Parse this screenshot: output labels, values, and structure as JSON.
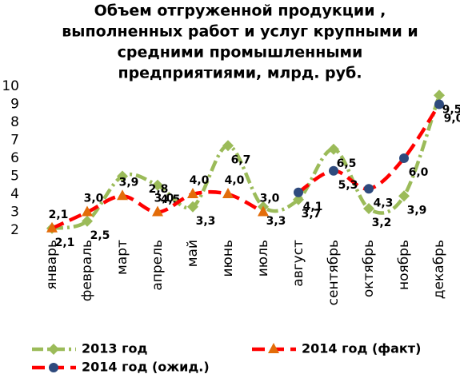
{
  "chart_data": {
    "type": "line",
    "title": [
      "Объем отгруженной продукции ,",
      "выполненных работ и услуг крупными и",
      "средними промышленными",
      "предприятиями,   млрд. руб."
    ],
    "categories": [
      "январь",
      "февраль",
      "март",
      "апрель",
      "май",
      "июнь",
      "июль",
      "август",
      "сентябрь",
      "октябрь",
      "ноябрь",
      "декабрь"
    ],
    "ylim": [
      2,
      10
    ],
    "yticks": [
      2,
      3,
      4,
      5,
      6,
      7,
      8,
      9,
      10
    ],
    "series": [
      {
        "name": "2013 год",
        "color": "#9bbb59",
        "marker": "diamond",
        "dash": "14 5 3 5",
        "values": [
          2.1,
          2.5,
          5.0,
          4.5,
          3.3,
          6.7,
          3.3,
          3.7,
          6.5,
          3.2,
          3.9,
          9.5
        ],
        "value_labels": [
          "2,1",
          "2,5",
          null,
          "4,5",
          "3,3",
          "6,7",
          "3,3",
          "3,7",
          "6,5",
          "3,2",
          "3,9",
          "9,5"
        ]
      },
      {
        "name": "2014 год (факт)",
        "color": "#ff0000",
        "marker": "triangle",
        "marker_color": "#e36c09",
        "dash": "16 8",
        "values": [
          2.1,
          3.0,
          3.9,
          3.0,
          4.0,
          4.0,
          3.0,
          null,
          null,
          null,
          null,
          null
        ],
        "value_labels": [
          "2,1",
          "3,0",
          "3,9",
          "3,0",
          "4,0",
          "4,0",
          "3,0",
          null,
          null,
          null,
          null,
          null
        ]
      },
      {
        "name": "2014 год (ожид.)",
        "color": "#ff0000",
        "marker": "circle",
        "marker_color": "#2e4a7d",
        "dash": "16 8",
        "values": [
          null,
          null,
          null,
          null,
          null,
          null,
          null,
          4.1,
          5.3,
          4.3,
          6.0,
          9.0
        ],
        "value_labels": [
          null,
          null,
          null,
          null,
          null,
          null,
          null,
          "4,1",
          "5,3",
          "4,3",
          "6,0",
          "9,0"
        ]
      }
    ],
    "annotations": [
      "2,8"
    ]
  }
}
